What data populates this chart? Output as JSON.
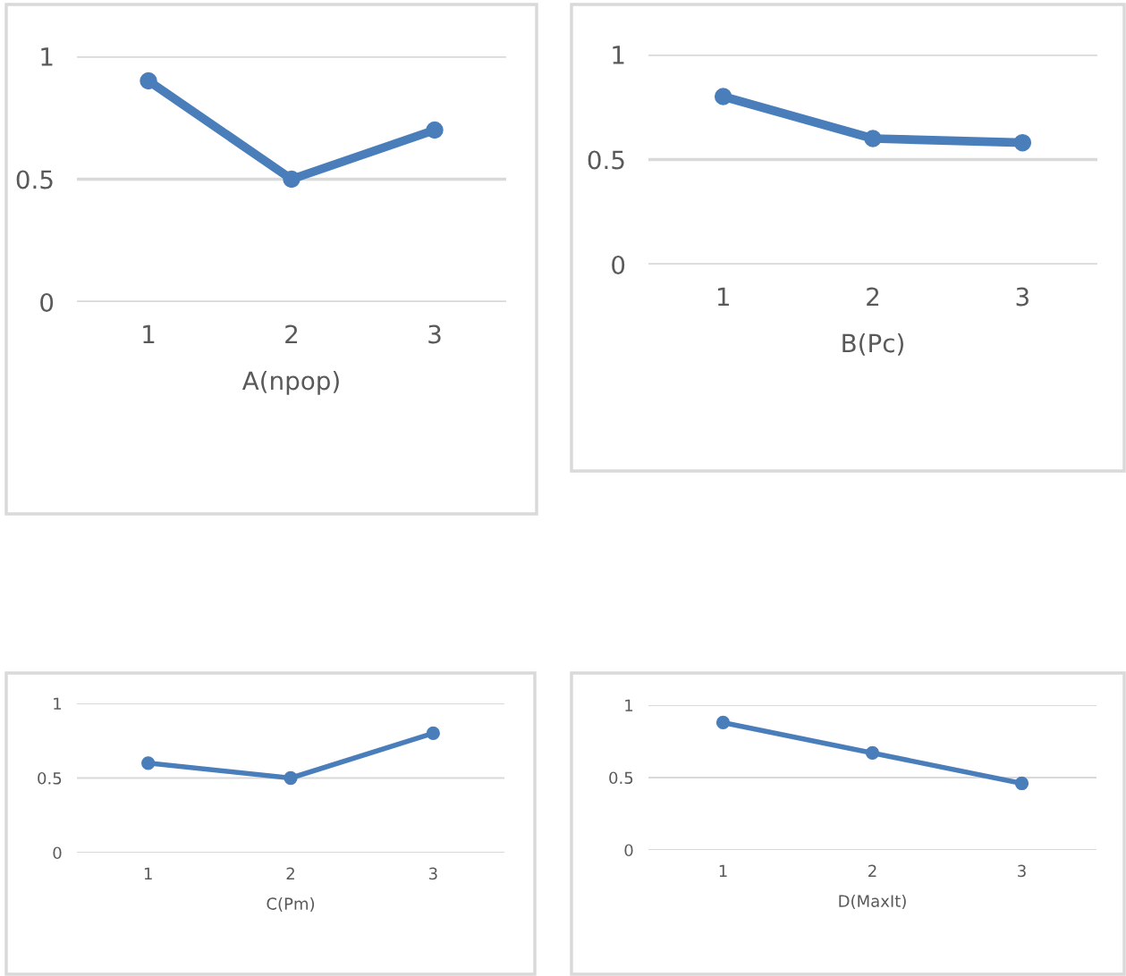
{
  "chart_data": [
    {
      "type": "line",
      "xlabel": "A(npop)",
      "categories": [
        "1",
        "2",
        "3"
      ],
      "values": [
        0.9,
        0.5,
        0.7
      ],
      "color": "#4a7ebb",
      "ylim": [
        0,
        1
      ],
      "yticks": [
        0,
        0.5,
        1
      ],
      "grid": "y",
      "marker": "circle",
      "line_style": "solid"
    },
    {
      "type": "line",
      "xlabel": "B(Pc)",
      "categories": [
        "1",
        "2",
        "3"
      ],
      "values": [
        0.8,
        0.6,
        0.58
      ],
      "color": "#4a7ebb",
      "ylim": [
        0,
        1
      ],
      "yticks": [
        0,
        0.5,
        1
      ],
      "grid": "y",
      "marker": "circle",
      "line_style": "solid"
    },
    {
      "type": "line",
      "xlabel": "C(Pm)",
      "categories": [
        "1",
        "2",
        "3"
      ],
      "values": [
        0.6,
        0.5,
        0.8
      ],
      "color": "#4a7ebb",
      "ylim": [
        0,
        1
      ],
      "yticks": [
        0,
        0.5,
        1
      ],
      "grid": "y",
      "marker": "circle",
      "line_style": "solid"
    },
    {
      "type": "line",
      "xlabel": "D(MaxIt)",
      "categories": [
        "1",
        "2",
        "3"
      ],
      "values": [
        0.88,
        0.67,
        0.46
      ],
      "color": "#4a7ebb",
      "ylim": [
        0,
        1
      ],
      "yticks": [
        0,
        0.5,
        1
      ],
      "grid": "y",
      "marker": "circle",
      "line_style": "solid"
    }
  ]
}
